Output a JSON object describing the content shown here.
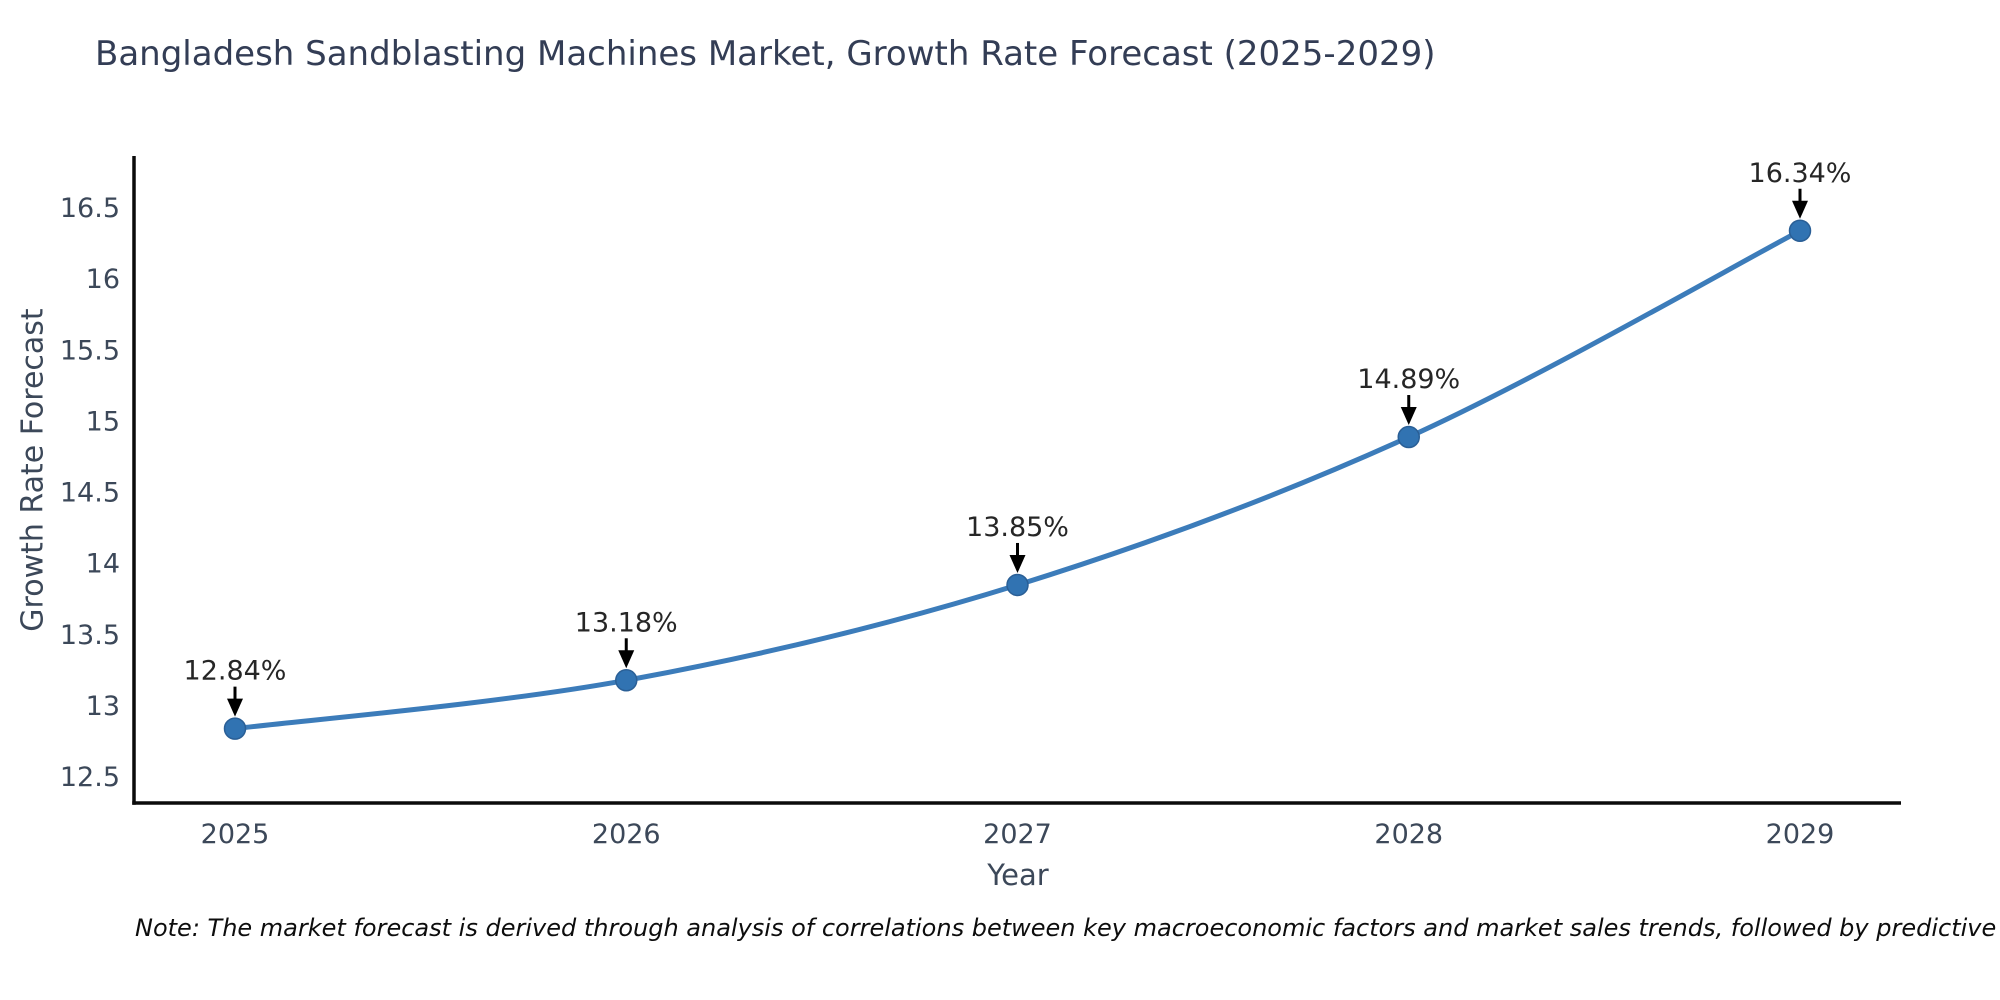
{
  "chart_data": {
    "type": "line",
    "title": "Bangladesh Sandblasting Machines Market, Growth Rate Forecast (2025-2029)",
    "xlabel": "Year",
    "ylabel": "Growth Rate Forecast",
    "categories": [
      "2025",
      "2026",
      "2027",
      "2028",
      "2029"
    ],
    "series": [
      {
        "name": "Growth Rate Forecast",
        "values": [
          12.84,
          13.18,
          13.85,
          14.89,
          16.34
        ]
      }
    ],
    "point_labels": [
      "12.84%",
      "13.18%",
      "13.85%",
      "14.89%",
      "16.34%"
    ],
    "y_ticks": [
      12.5,
      13,
      13.5,
      14,
      14.5,
      15,
      15.5,
      16,
      16.5
    ],
    "ylim": [
      12.3,
      16.8
    ],
    "grid": false,
    "legend": "none",
    "line_shape": "spline",
    "colors": {
      "line": "#3c7cba",
      "marker": "#3173b2",
      "marker_edge": "#2a5f96",
      "annotation_text": "#262626",
      "annotation_arrow": "#000000",
      "axis_spine": "#0b0b0b",
      "tick_text": "#3c4859",
      "title_text": "#333d55"
    }
  },
  "note": {
    "text": "Note: The market forecast is derived through analysis of correlations between key macroeconomic factors and market sales trends, followed by predictive modeling to project future sal"
  }
}
